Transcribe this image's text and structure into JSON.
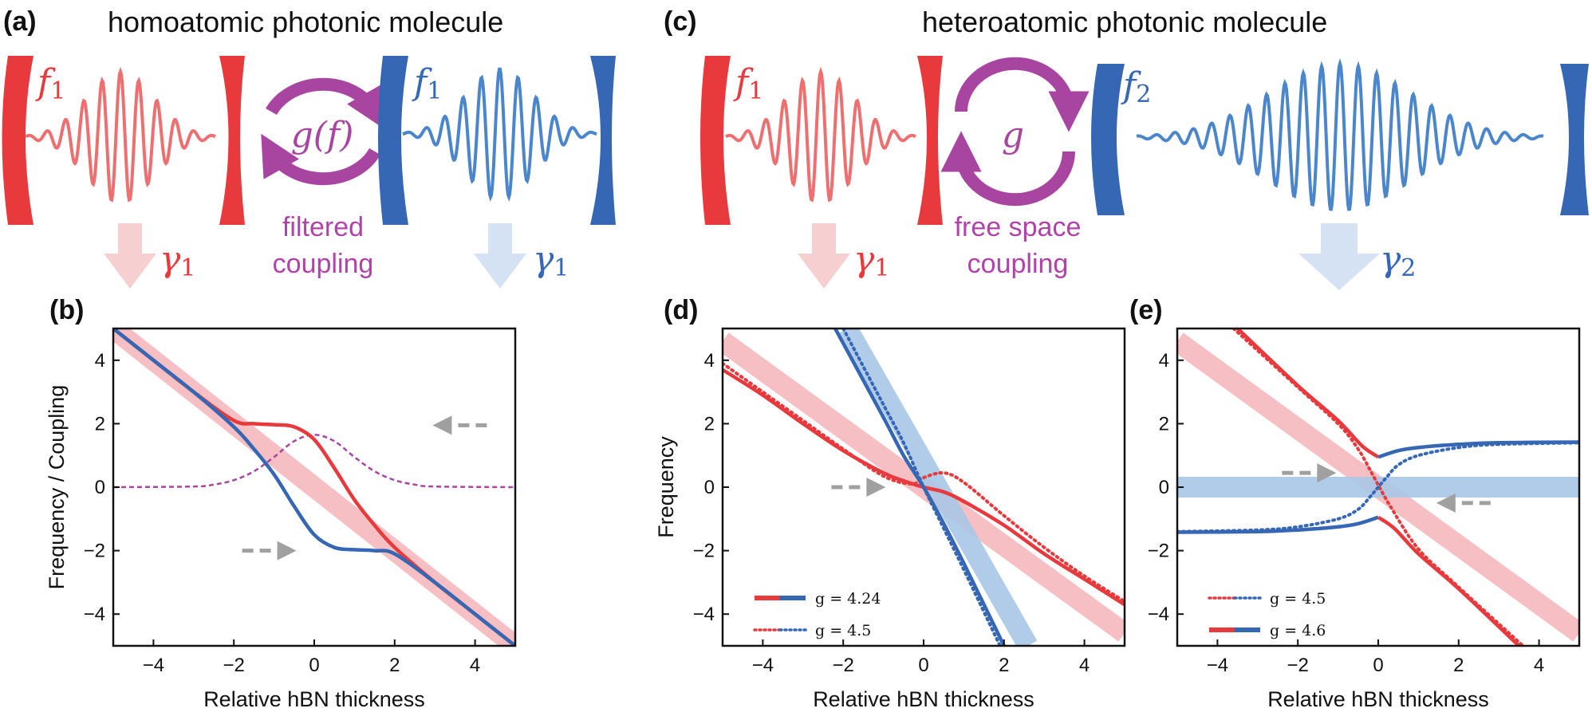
{
  "panel_labels": {
    "a": "(a)",
    "b": "(b)",
    "c": "(c)",
    "d": "(d)",
    "e": "(e)"
  },
  "panel_a": {
    "title": "homoatomic photonic molecule",
    "left_freq": "f",
    "left_freq_sub": "1",
    "right_freq": "f",
    "right_freq_sub": "1",
    "coupling_symbol": "g(f)",
    "coupling_caption_line1": "filtered",
    "coupling_caption_line2": "coupling",
    "left_loss": "γ",
    "left_loss_sub": "1",
    "right_loss": "γ",
    "right_loss_sub": "1"
  },
  "panel_c": {
    "title": "heteroatomic photonic molecule",
    "left_freq": "f",
    "left_freq_sub": "1",
    "right_freq": "f",
    "right_freq_sub": "2",
    "coupling_symbol": "g",
    "coupling_caption_line1": "free space",
    "coupling_caption_line2": "coupling",
    "left_loss": "γ",
    "left_loss_sub": "1",
    "right_loss": "γ",
    "right_loss_sub": "2"
  },
  "colors": {
    "red": "#e8393d",
    "blue": "#3567b5",
    "light_red": "#f4b8bc",
    "light_blue": "#a8c6e6",
    "purple": "#a845a0",
    "gray": "#a0a0a0"
  },
  "chart_data": [
    {
      "id": "b",
      "type": "line",
      "xlabel": "Relative hBN thickness",
      "ylabel": "Frequency / Coupling",
      "xlim": [
        -5,
        5
      ],
      "ylim": [
        -5,
        5
      ],
      "xticks": [
        -4,
        -2,
        0,
        2,
        4
      ],
      "yticks": [
        -4,
        -2,
        0,
        2,
        4
      ],
      "series": [
        {
          "color": "red",
          "style": "solid",
          "x": [
            -5,
            -4,
            -3,
            -2,
            -1.5,
            -1,
            -0.5,
            0,
            0.5,
            1,
            1.5,
            2,
            3,
            4,
            5
          ],
          "y": [
            5,
            4,
            3,
            2.1,
            2,
            1.97,
            1.9,
            1.5,
            0.6,
            -0.4,
            -1.2,
            -1.9,
            -3,
            -4,
            -5
          ]
        },
        {
          "color": "blue",
          "style": "solid",
          "x": [
            -5,
            -4,
            -3,
            -2,
            -1.5,
            -1,
            -0.5,
            0,
            0.5,
            1,
            1.5,
            2,
            3,
            4,
            5
          ],
          "y": [
            5,
            4,
            3,
            1.9,
            1.2,
            0.4,
            -0.6,
            -1.5,
            -1.9,
            -1.97,
            -2,
            -2.1,
            -3,
            -4,
            -5
          ]
        },
        {
          "color": "purple",
          "style": "dashed",
          "x": [
            -5,
            -3,
            -2.5,
            -2,
            -1.5,
            -1,
            -0.5,
            0,
            0.5,
            1,
            1.5,
            2,
            2.5,
            3,
            5
          ],
          "y": [
            0,
            0.02,
            0.08,
            0.22,
            0.5,
            0.95,
            1.45,
            1.65,
            1.45,
            0.95,
            0.5,
            0.22,
            0.08,
            0.02,
            0
          ]
        },
        {
          "color": "light_red",
          "style": "band",
          "x": [
            -5,
            5
          ],
          "y": [
            5,
            -5
          ]
        }
      ],
      "annotations": [
        {
          "type": "arrow",
          "direction": "left",
          "x": 3.5,
          "y": 1.95
        },
        {
          "type": "arrow",
          "direction": "right",
          "x": -1.0,
          "y": -2.0
        }
      ]
    },
    {
      "id": "d",
      "type": "line",
      "xlabel": "Relative hBN thickness",
      "ylabel": "Frequency",
      "xlim": [
        -5,
        5
      ],
      "ylim": [
        -5,
        5
      ],
      "xticks": [
        -4,
        -2,
        0,
        2,
        4
      ],
      "yticks": [
        -4,
        -2,
        0,
        2,
        4
      ],
      "series": [
        {
          "color": "light_red",
          "style": "band",
          "x": [
            -5,
            5
          ],
          "y": [
            4.6,
            -4.6
          ]
        },
        {
          "color": "light_blue",
          "style": "band",
          "x": [
            -1.9,
            2.6
          ],
          "y": [
            5,
            -5
          ]
        },
        {
          "color": "red",
          "style": "solid",
          "x": [
            -5,
            -4,
            -3,
            -2,
            -1,
            -0.5,
            0,
            0.5,
            1,
            2,
            3,
            4,
            5
          ],
          "y": [
            3.7,
            2.9,
            2.0,
            1.15,
            0.45,
            0.2,
            0,
            -0.15,
            -0.45,
            -1.2,
            -2.1,
            -2.9,
            -3.7
          ]
        },
        {
          "color": "blue",
          "style": "solid",
          "x": [
            -2.2,
            -1,
            -0.5,
            0,
            0.5,
            1,
            2
          ],
          "y": [
            5,
            2.2,
            1.0,
            0,
            -1.15,
            -2.4,
            -5
          ]
        },
        {
          "color": "red",
          "style": "dotted",
          "x": [
            -5,
            -4,
            -3,
            -2,
            -1,
            -0.3,
            0,
            0.5,
            1,
            2,
            3,
            4,
            5
          ],
          "y": [
            3.9,
            3.0,
            2.1,
            1.2,
            0.35,
            0.1,
            0.3,
            0.45,
            0.15,
            -0.9,
            -1.9,
            -2.8,
            -3.6
          ]
        },
        {
          "color": "blue",
          "style": "dotted",
          "x": [
            -2.0,
            -1,
            -0.5,
            0,
            0.5,
            1,
            1.9
          ],
          "y": [
            5,
            2.6,
            1.4,
            0,
            -1.3,
            -2.6,
            -5
          ]
        }
      ],
      "legend": [
        {
          "label": "g = 4.24",
          "style": "solid"
        },
        {
          "label": "g = 4.5",
          "style": "dotted"
        }
      ],
      "annotations": [
        {
          "type": "arrow",
          "direction": "right",
          "x": -1.5,
          "y": 0
        }
      ]
    },
    {
      "id": "e",
      "type": "line",
      "xlabel": "Relative hBN thickness",
      "ylabel": "",
      "xlim": [
        -5,
        5
      ],
      "ylim": [
        -5,
        5
      ],
      "xticks": [
        -4,
        -2,
        0,
        2,
        4
      ],
      "yticks": [
        -4,
        -2,
        0,
        2,
        4
      ],
      "series": [
        {
          "color": "light_red",
          "style": "band",
          "x": [
            -5,
            5
          ],
          "y": [
            4.6,
            -4.6
          ]
        },
        {
          "color": "light_blue",
          "style": "band",
          "x": [
            -5,
            5
          ],
          "y": [
            0,
            0
          ]
        },
        {
          "color": "red",
          "style": "solid",
          "x": [
            -3.5,
            -2,
            -1,
            -0.4,
            0
          ],
          "y": [
            5,
            3.2,
            2.1,
            1.3,
            0.95
          ]
        },
        {
          "color": "blue",
          "style": "solid",
          "x": [
            0,
            0.5,
            1,
            2,
            3,
            5
          ],
          "y": [
            0.95,
            1.15,
            1.25,
            1.35,
            1.4,
            1.42
          ]
        },
        {
          "color": "blue",
          "style": "solid",
          "x": [
            -5,
            -3,
            -2,
            -1,
            -0.5,
            0
          ],
          "y": [
            -1.42,
            -1.4,
            -1.35,
            -1.25,
            -1.15,
            -0.95
          ]
        },
        {
          "color": "red",
          "style": "solid",
          "x": [
            0,
            0.4,
            1,
            2,
            3.5
          ],
          "y": [
            -0.95,
            -1.3,
            -2.1,
            -3.2,
            -5
          ]
        },
        {
          "color": "red",
          "style": "dotted",
          "x": [
            -3.6,
            -2,
            -1,
            -0.5,
            -0.1,
            0.3,
            1,
            2,
            3.6
          ],
          "y": [
            5,
            3.15,
            2.0,
            1.2,
            0.3,
            -0.6,
            -1.95,
            -3.15,
            -5
          ]
        },
        {
          "color": "blue",
          "style": "dotted",
          "x": [
            -5,
            -3,
            -2,
            -1,
            -0.5,
            -0.2,
            0,
            0.2,
            0.5,
            1,
            2,
            3,
            5
          ],
          "y": [
            -1.4,
            -1.35,
            -1.25,
            -1.0,
            -0.7,
            -0.3,
            0,
            0.3,
            0.7,
            1.0,
            1.25,
            1.35,
            1.4
          ]
        }
      ],
      "legend": [
        {
          "label": "g = 4.5",
          "style": "dotted"
        },
        {
          "label": "g = 4.6",
          "style": "solid"
        }
      ],
      "annotations": [
        {
          "type": "arrow",
          "direction": "right",
          "x": -1.6,
          "y": 0.45
        },
        {
          "type": "arrow",
          "direction": "left",
          "x": 2.0,
          "y": -0.5
        }
      ]
    }
  ]
}
